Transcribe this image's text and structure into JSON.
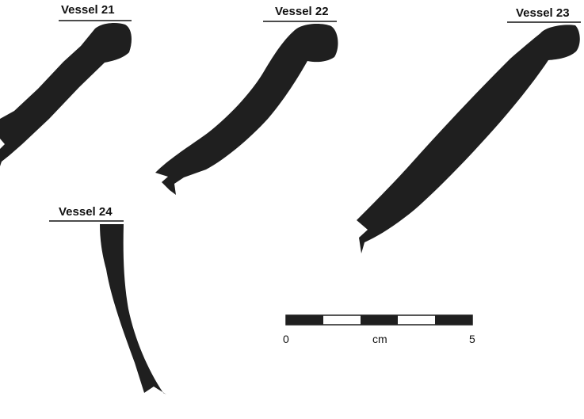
{
  "vessels": [
    {
      "label": "Vessel 21"
    },
    {
      "label": "Vessel 22"
    },
    {
      "label": "Vessel 23"
    },
    {
      "label": "Vessel 24"
    }
  ],
  "scale_bar": {
    "start_label": "0",
    "unit_label": "cm",
    "end_label": "5",
    "segments": 5
  },
  "colors": {
    "profile_fill": "#1f1f1f",
    "background": "#ffffff"
  }
}
